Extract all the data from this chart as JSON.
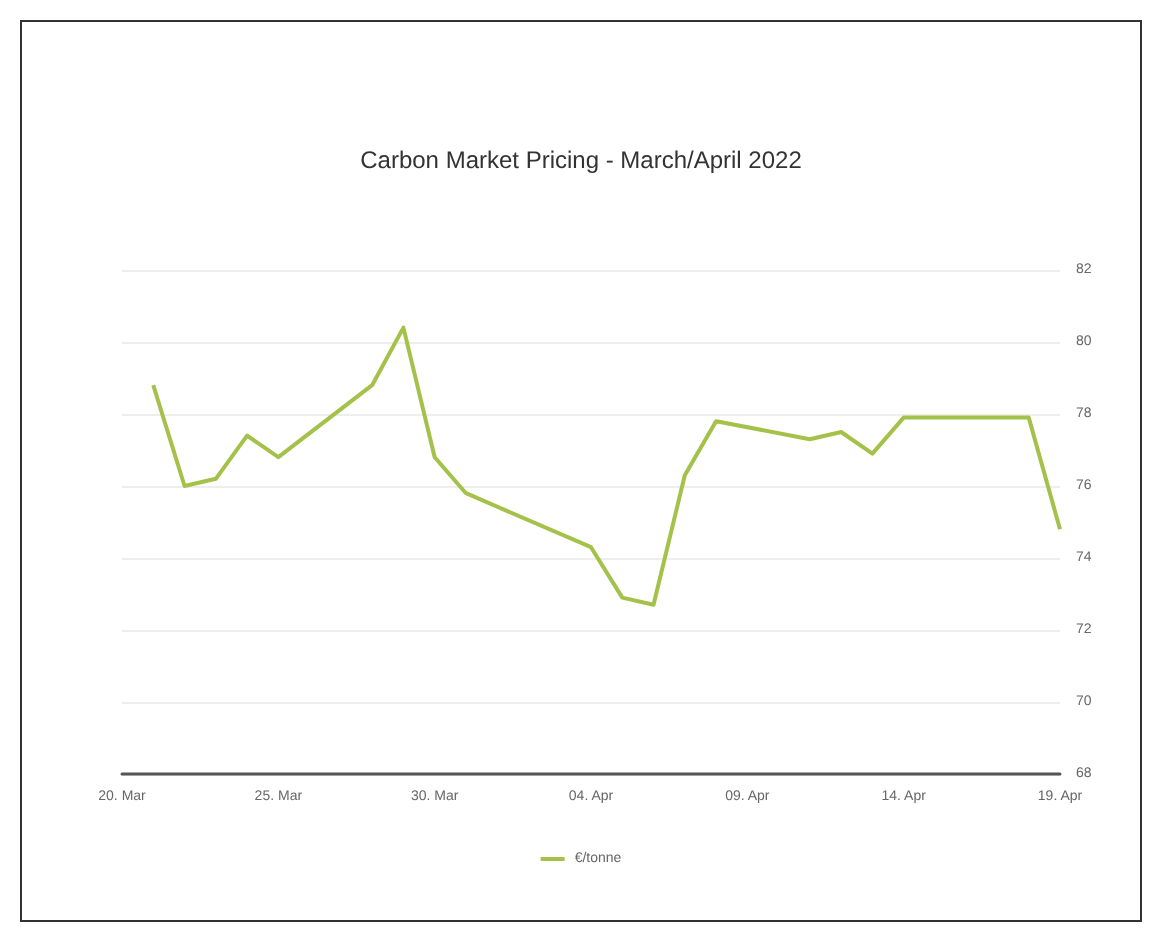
{
  "chart_data": {
    "type": "line",
    "title": "Carbon Market Pricing - March/April 2022",
    "x": [
      "2022-03-21",
      "2022-03-22",
      "2022-03-23",
      "2022-03-24",
      "2022-03-25",
      "2022-03-28",
      "2022-03-29",
      "2022-03-30",
      "2022-03-31",
      "2022-04-04",
      "2022-04-05",
      "2022-04-06",
      "2022-04-07",
      "2022-04-08",
      "2022-04-11",
      "2022-04-12",
      "2022-04-13",
      "2022-04-14",
      "2022-04-18",
      "2022-04-19"
    ],
    "series": [
      {
        "name": "€/tonne",
        "color": "#a4c14a",
        "values": [
          78.8,
          76.0,
          76.2,
          77.4,
          76.8,
          78.8,
          80.4,
          76.8,
          75.8,
          74.3,
          72.9,
          72.7,
          76.3,
          77.8,
          77.3,
          77.5,
          76.9,
          77.9,
          77.9,
          74.8
        ]
      }
    ],
    "xlim": [
      "2022-03-20",
      "2022-04-19"
    ],
    "xticks": [
      {
        "value": "2022-03-20",
        "label": "20. Mar"
      },
      {
        "value": "2022-03-25",
        "label": "25. Mar"
      },
      {
        "value": "2022-03-30",
        "label": "30. Mar"
      },
      {
        "value": "2022-04-04",
        "label": "04. Apr"
      },
      {
        "value": "2022-04-09",
        "label": "09. Apr"
      },
      {
        "value": "2022-04-14",
        "label": "14. Apr"
      },
      {
        "value": "2022-04-19",
        "label": "19. Apr"
      }
    ],
    "ylim": [
      68,
      82
    ],
    "yticks": [
      68,
      70,
      72,
      74,
      76,
      78,
      80,
      82
    ],
    "grid": "y",
    "legend": "bottom",
    "marker": "none",
    "line_style": "solid"
  }
}
